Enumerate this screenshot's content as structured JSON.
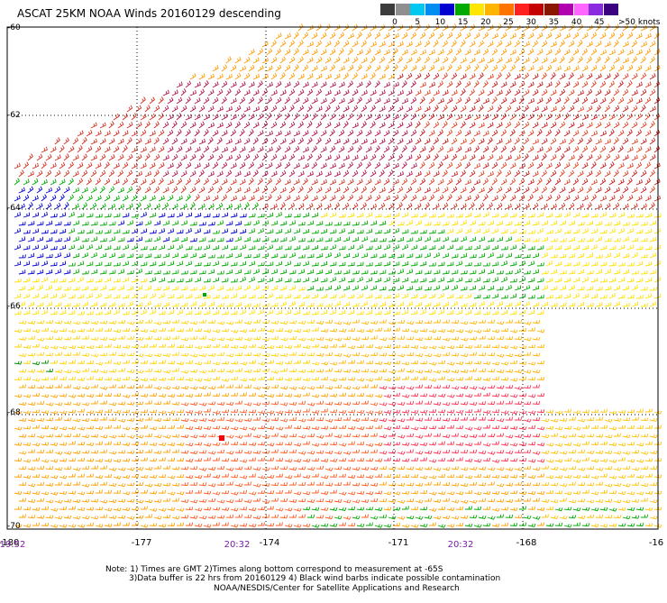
{
  "title": "ASCAT 25KM NOAA Winds 20160129 descending",
  "legend": {
    "colors": [
      "#3c3c3c",
      "#8f8f8f",
      "#00c8f0",
      "#008cf0",
      "#0000d0",
      "#00aa00",
      "#ffe600",
      "#ffb400",
      "#ff7300",
      "#ff2020",
      "#c40000",
      "#8a1600",
      "#b000b0",
      "#ff66ff",
      "#8a2be2",
      "#3a0080"
    ],
    "labels": [
      {
        "text": "0",
        "at": 0
      },
      {
        "text": "5",
        "at": 1
      },
      {
        "text": "10",
        "at": 2
      },
      {
        "text": "15",
        "at": 3
      },
      {
        "text": "20",
        "at": 4
      },
      {
        "text": "25",
        "at": 5
      },
      {
        "text": "30",
        "at": 6
      },
      {
        "text": "35",
        "at": 7
      },
      {
        "text": "40",
        "at": 8
      },
      {
        "text": "45",
        "at": 9
      },
      {
        "text": ">50 knots",
        "at": 10
      }
    ]
  },
  "axes": {
    "lat_labels": [
      "-60",
      "-62",
      "-64",
      "-66",
      "-68",
      "-70"
    ],
    "lon_labels": [
      "-180",
      "-177",
      "-174",
      "-171",
      "-168",
      "-16"
    ],
    "time_labels": [
      "19:52",
      "20:32",
      "20:32"
    ]
  },
  "notes": [
    "Note: 1) Times are GMT 2)Times along bottom correspond to measurement at -65S",
    "3)Data buffer is 22 hrs from 20160129 4) Black wind barbs indicate possible contamination",
    "NOAA/NESDIS/Center for Satellite Applications and Research"
  ]
}
